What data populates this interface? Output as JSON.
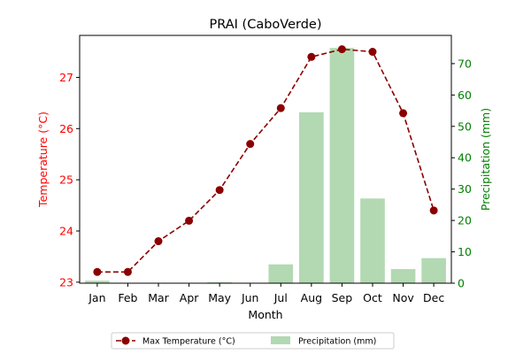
{
  "chart_data": {
    "type": "bar+line",
    "title": "PRAI (CaboVerde)",
    "xlabel": "Month",
    "categories": [
      "Jan",
      "Feb",
      "Mar",
      "Apr",
      "May",
      "Jun",
      "Jul",
      "Aug",
      "Sep",
      "Oct",
      "Nov",
      "Dec"
    ],
    "left_axis": {
      "label": "Temperature (°C)",
      "color": "#ff0000",
      "ylim": [
        22.98,
        27.82
      ],
      "ticks": [
        "23",
        "24",
        "25",
        "26",
        "27"
      ]
    },
    "right_axis": {
      "label": "Precipitation (mm)",
      "color": "#008000",
      "ylim": [
        0,
        79
      ],
      "ticks": [
        "0",
        "10",
        "20",
        "30",
        "40",
        "50",
        "60",
        "70"
      ]
    },
    "series": [
      {
        "name": "Max Temperature (°C)",
        "type": "line",
        "axis": "left",
        "color": "#8b0000",
        "style": "dashed",
        "marker": "circle",
        "values": [
          23.2,
          23.2,
          23.8,
          24.2,
          24.8,
          25.7,
          26.4,
          27.4,
          27.55,
          27.5,
          26.3,
          24.4
        ]
      },
      {
        "name": "Precipitation (mm)",
        "type": "bar",
        "axis": "right",
        "color": "#b2d9b2",
        "values": [
          0.8,
          0,
          0,
          0,
          0.3,
          0,
          6,
          54.5,
          75,
          27,
          4.5,
          8
        ]
      }
    ],
    "legend": {
      "placement": "bottom-center",
      "entries": [
        "Max Temperature (°C)",
        "Precipitation (mm)"
      ]
    },
    "grid": false
  }
}
